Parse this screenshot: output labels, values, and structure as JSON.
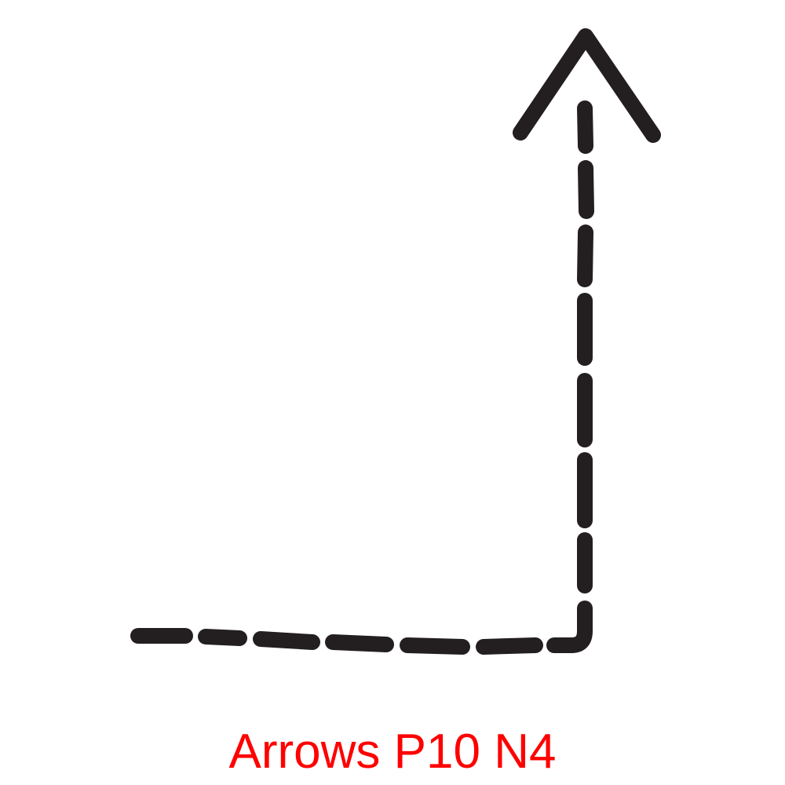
{
  "caption": "Arrows P10 N4",
  "colors": {
    "stroke": "#231f20",
    "caption": "#ff0000",
    "background": "#ffffff"
  },
  "icons": {
    "arrow": "dashed-elbow-arrow-up-icon"
  }
}
